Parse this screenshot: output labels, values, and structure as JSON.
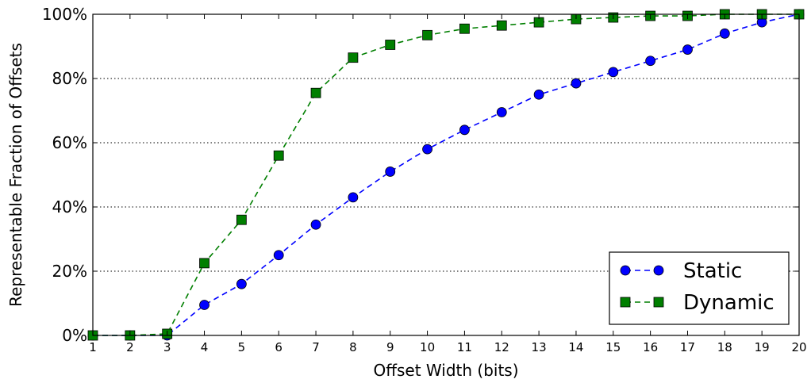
{
  "chart_data": {
    "type": "line",
    "title": "",
    "xlabel": "Offset Width (bits)",
    "ylabel": "Representable Fraction of Offsets",
    "xlim": [
      1,
      20
    ],
    "ylim": [
      0,
      100
    ],
    "x_ticks": [
      1,
      2,
      3,
      4,
      5,
      6,
      7,
      8,
      9,
      10,
      11,
      12,
      13,
      14,
      15,
      16,
      17,
      18,
      19,
      20
    ],
    "y_ticks": [
      0,
      20,
      40,
      60,
      80,
      100
    ],
    "y_tick_labels": [
      "0%",
      "20%",
      "40%",
      "60%",
      "80%",
      "100%"
    ],
    "grid": "horizontal dotted",
    "legend_position": "lower-right",
    "x": [
      1,
      2,
      3,
      4,
      5,
      6,
      7,
      8,
      9,
      10,
      11,
      12,
      13,
      14,
      15,
      16,
      17,
      18,
      19,
      20
    ],
    "series": [
      {
        "name": "Static",
        "color": "#0000ff",
        "marker": "circle",
        "line_style": "dashed",
        "values": [
          0,
          0,
          0,
          9.5,
          16,
          25,
          34.5,
          43,
          51,
          58,
          64,
          69.5,
          75,
          78.5,
          82,
          85.5,
          89,
          94,
          97.5,
          100
        ]
      },
      {
        "name": "Dynamic",
        "color": "#007f00",
        "marker": "square",
        "line_style": "dashed",
        "values": [
          0,
          0,
          0.5,
          22.5,
          36,
          56,
          75.5,
          86.5,
          90.5,
          93.5,
          95.5,
          96.5,
          97.5,
          98.5,
          99,
          99.5,
          99.5,
          100,
          100,
          100
        ]
      }
    ]
  }
}
